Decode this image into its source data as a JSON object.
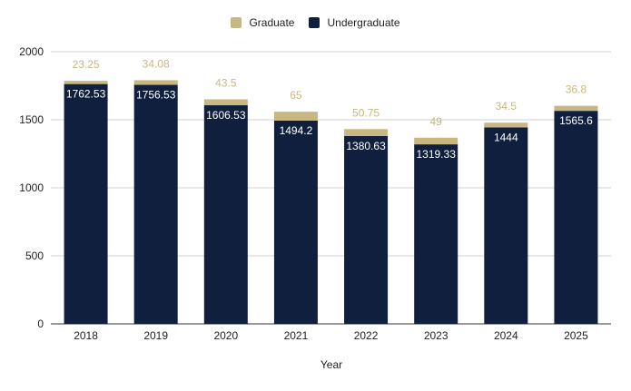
{
  "chart_data": {
    "type": "bar",
    "stacked": true,
    "categories": [
      "2018",
      "2019",
      "2020",
      "2021",
      "2022",
      "2023",
      "2024",
      "2025"
    ],
    "series": [
      {
        "name": "Undergraduate",
        "color": "#0f1f3d",
        "values": [
          1762.53,
          1756.53,
          1606.53,
          1494.2,
          1380.63,
          1319.33,
          1444,
          1565.6
        ],
        "labels": [
          "1762.53",
          "1756.53",
          "1606.53",
          "1494.2",
          "1380.63",
          "1319.33",
          "1444",
          "1565.6"
        ]
      },
      {
        "name": "Graduate",
        "color": "#c9b781",
        "values": [
          23.25,
          34.08,
          43.5,
          65,
          50.75,
          49,
          34.5,
          36.8
        ],
        "labels": [
          "23.25",
          "34.08",
          "43.5",
          "65",
          "50.75",
          "49",
          "34.5",
          "36.8"
        ]
      }
    ],
    "legend_order": [
      "Graduate",
      "Undergraduate"
    ],
    "legend_position": "top",
    "xlabel": "Year",
    "ylabel": "",
    "ylim": [
      0,
      2000
    ],
    "yticks": [
      "0",
      "500",
      "1000",
      "1500",
      "2000"
    ],
    "grid": true
  }
}
